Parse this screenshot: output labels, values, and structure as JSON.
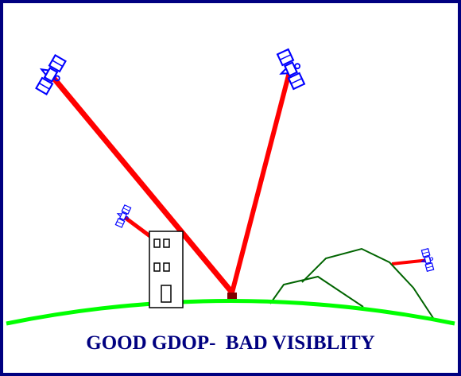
{
  "caption": "GOOD GDOP-  BAD VISIBLITY",
  "colors": {
    "frame": "#000080",
    "signal": "#ff0000",
    "ground": "#00ff00",
    "hills": "#006400",
    "satellite": "#0000ff",
    "building": "#000000",
    "receiver": "#800000",
    "caption": "#000080"
  },
  "satellites": [
    {
      "id": "sat-upper-left",
      "icon": "satellite-icon",
      "signal_reaches_receiver": true
    },
    {
      "id": "sat-upper-right",
      "icon": "satellite-icon",
      "signal_reaches_receiver": true
    },
    {
      "id": "sat-low-left",
      "icon": "satellite-icon",
      "signal_reaches_receiver": false,
      "blocked_by": "building"
    },
    {
      "id": "sat-low-right",
      "icon": "satellite-icon",
      "signal_reaches_receiver": false,
      "blocked_by": "hills"
    }
  ],
  "obstacles": [
    "building",
    "hills"
  ],
  "receiver_icon": "receiver-icon"
}
